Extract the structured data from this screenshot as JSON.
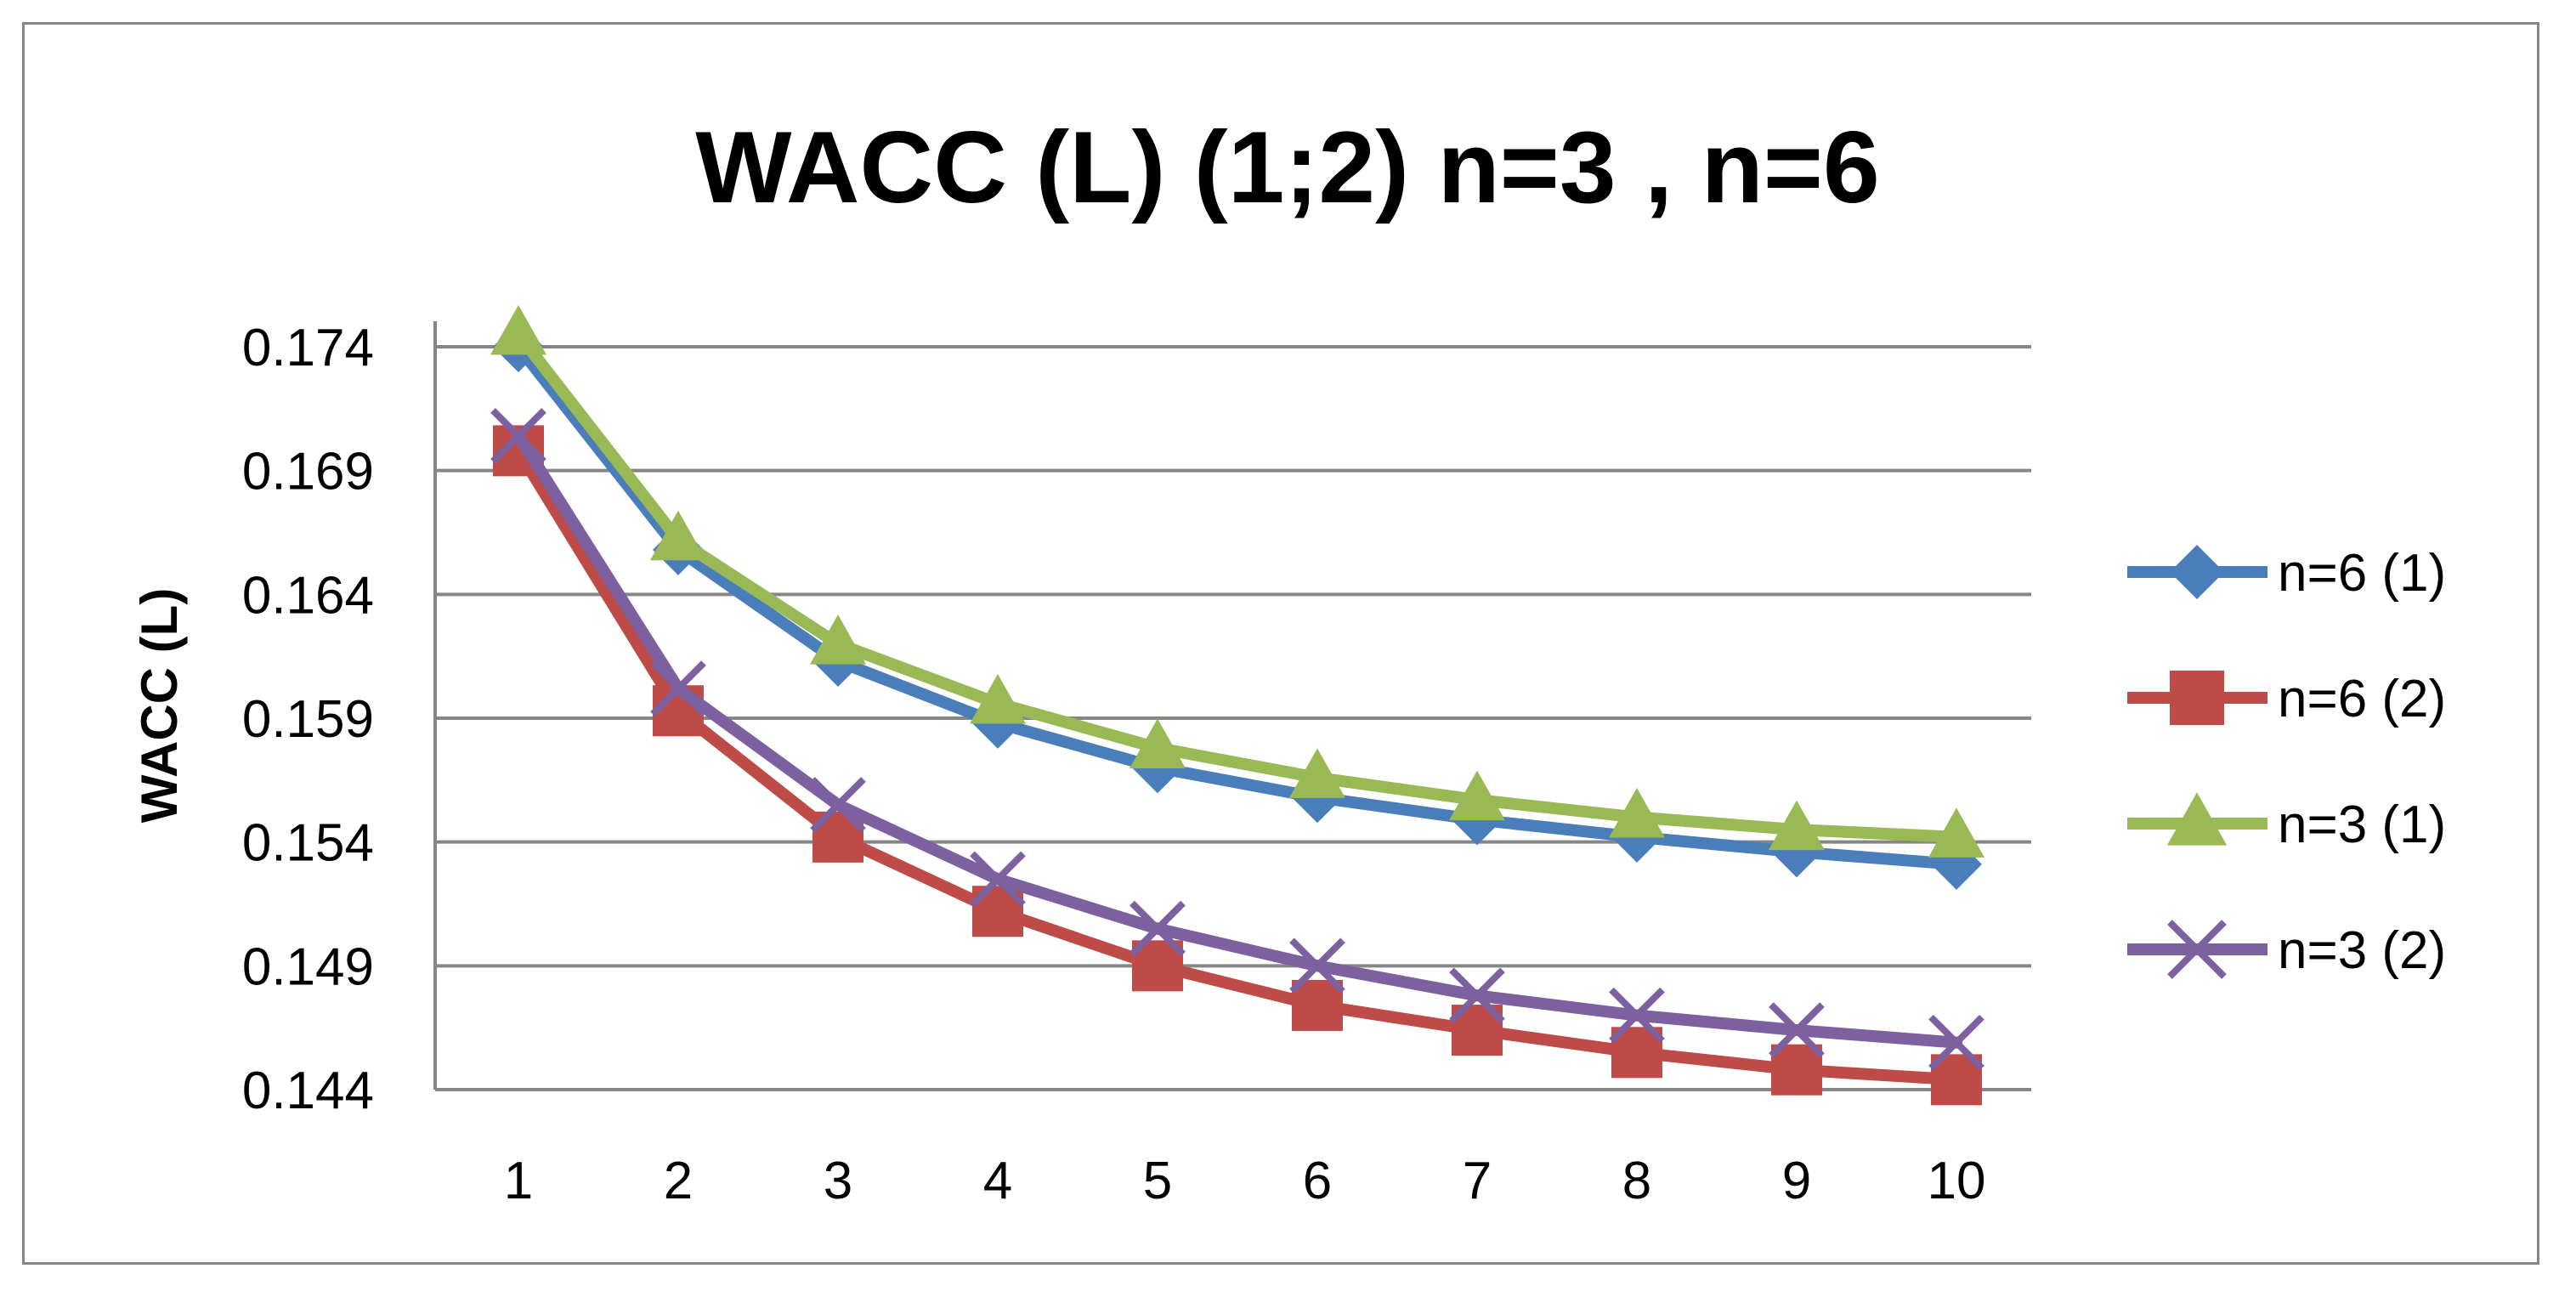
{
  "chart_data": {
    "type": "line",
    "title": "WACC (L) (1;2) n=3 , n=6",
    "xlabel": "",
    "ylabel": "WACC (L)",
    "categories": [
      "1",
      "2",
      "3",
      "4",
      "5",
      "6",
      "7",
      "8",
      "9",
      "10"
    ],
    "y_ticks": [
      "0.144",
      "0.149",
      "0.154",
      "0.159",
      "0.164",
      "0.169",
      "0.174"
    ],
    "ylim": [
      0.144,
      0.174
    ],
    "grid": true,
    "legend_position": "right",
    "series": [
      {
        "name": "n=6 (1)",
        "color": "#4A7EBB",
        "marker": "diamond",
        "values": [
          0.174,
          0.1658,
          0.1613,
          0.1588,
          0.157,
          0.1558,
          0.1549,
          0.1542,
          0.1536,
          0.1531
        ]
      },
      {
        "name": "n=6 (2)",
        "color": "#BE4B48",
        "marker": "square",
        "values": [
          0.1698,
          0.1593,
          0.1542,
          0.1512,
          0.149,
          0.1474,
          0.1464,
          0.1455,
          0.1448,
          0.1444
        ]
      },
      {
        "name": "n=3 (1)",
        "color": "#98B954",
        "marker": "triangle",
        "values": [
          0.1745,
          0.1662,
          0.162,
          0.1596,
          0.1578,
          0.1566,
          0.1557,
          0.155,
          0.1545,
          0.1542
        ]
      },
      {
        "name": "n=3 (2)",
        "color": "#7D60A0",
        "marker": "x",
        "values": [
          0.1704,
          0.1602,
          0.1555,
          0.1525,
          0.1505,
          0.149,
          0.1478,
          0.147,
          0.1464,
          0.1459
        ]
      }
    ]
  }
}
